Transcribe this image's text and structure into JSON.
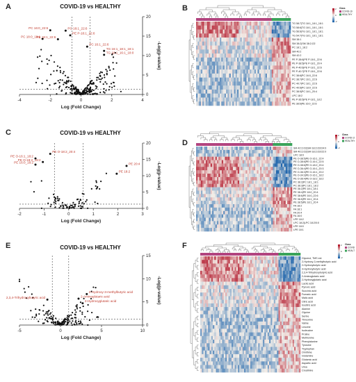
{
  "panels": {
    "A": {
      "letter": "A",
      "title": "COVID-19 vs HEALTHY"
    },
    "B": {
      "letter": "B"
    },
    "C": {
      "letter": "C",
      "title": "COVID-19 vs HEALTHY"
    },
    "D": {
      "letter": "D"
    },
    "E": {
      "letter": "E",
      "title": "COVID-19 vs HEALTHY"
    },
    "F": {
      "letter": "F"
    }
  },
  "legend": {
    "group_label": "Class",
    "covid": "COVID-19",
    "healthy": "HEALTHY"
  },
  "colors": {
    "covid": "#b2447f",
    "healthy": "#3aa35a",
    "heat_high": "#b2182b",
    "heat_mid": "#f4efe9",
    "heat_low": "#2166ac",
    "points": "#111111",
    "annot": "#c0392b",
    "guide": "#444444"
  },
  "chart_data": [
    {
      "panel": "A",
      "type": "scatter",
      "xlabel": "Log (Fold Change)",
      "ylabel": "-Log(p-value)",
      "xlim": [
        -4,
        4
      ],
      "ylim": [
        0,
        20
      ],
      "xticks": [
        -4,
        -2,
        0,
        2,
        4
      ],
      "yticks": [
        0,
        5,
        10,
        15,
        20
      ],
      "annotations": [
        {
          "text": "PC 16:0_22:6",
          "x": -2.0,
          "y": 16.5,
          "side": "left"
        },
        {
          "text": "PC 18:1_22:6",
          "x": -1.0,
          "y": 16.4,
          "side": "right"
        },
        {
          "text": "PE P-18:1_22:6",
          "x": -0.7,
          "y": 15.2,
          "side": "right"
        },
        {
          "text": "PC 18:0_18:1",
          "x": -2.5,
          "y": 14.3,
          "side": "left"
        },
        {
          "text": "PE 16:1_22:6",
          "x": -1.5,
          "y": 14.2,
          "side": "left"
        },
        {
          "text": "TG 16:1_18:1_18:1",
          "x": 1.5,
          "y": 11.2,
          "side": "right"
        },
        {
          "text": "TG 16:1_16:1_18:0",
          "x": 1.5,
          "y": 10.2,
          "side": "right"
        },
        {
          "text": "PC 16:1_22:6",
          "x": 0.4,
          "y": 12.3,
          "side": "right"
        }
      ]
    },
    {
      "panel": "C",
      "type": "scatter",
      "xlabel": "Log (Fold Change)",
      "ylabel": "-Log(p-value)",
      "xlim": [
        -2,
        3
      ],
      "ylim": [
        0,
        20
      ],
      "xticks": [
        -2,
        -1,
        0,
        1,
        2,
        3
      ],
      "yticks": [
        0,
        5,
        10,
        15,
        20
      ],
      "annotations": [
        {
          "text": "PE O-18:2_20:4",
          "x": -0.75,
          "y": 16.7,
          "side": "right"
        },
        {
          "text": "PE O-16:1_18:2",
          "x": -1.35,
          "y": 15.3,
          "side": "left"
        },
        {
          "text": "PE O-18:2_18:2",
          "x": -1.05,
          "y": 14.2,
          "side": "left"
        },
        {
          "text": "PE 16:0_18:2",
          "x": -1.35,
          "y": 13.4,
          "side": "left"
        },
        {
          "text": "PE 20:4",
          "x": 2.35,
          "y": 13.0,
          "side": "right"
        },
        {
          "text": "PE 18:2",
          "x": 1.95,
          "y": 10.6,
          "side": "right"
        }
      ]
    },
    {
      "panel": "E",
      "type": "scatter",
      "xlabel": "Log (Fold Change)",
      "ylabel": "-Log(p-value)",
      "xlim": [
        -5,
        10
      ],
      "ylim": [
        0,
        15
      ],
      "xticks": [
        -5,
        0,
        5,
        10
      ],
      "yticks": [
        0,
        5,
        10,
        15
      ],
      "annotations": [
        {
          "text": "2-Hydroxy-3-methylbutyric acid",
          "x": 3.2,
          "y": 6.7,
          "side": "right"
        },
        {
          "text": "2-Aminoglutaric acid",
          "x": 2.2,
          "y": 5.7,
          "side": "right"
        },
        {
          "text": "2-Hydroxyglutaric acid",
          "x": 2.7,
          "y": 4.7,
          "side": "right"
        },
        {
          "text": "2,3,4-Trihydroxybutyric acid",
          "x": -1.6,
          "y": 5.5,
          "side": "left"
        }
      ]
    },
    {
      "panel": "B",
      "type": "heatmap",
      "row_labels": [
        "TG 58:7|TG 18:1_18:1_18:1",
        "TG 58:6|TG 18:1_18:1_18:1",
        "TG 56:6|TG 18:1_18:1_18:1",
        "TG 54:7|TG 18:1_18:1_18:1",
        "SM 38:1",
        "SM 38:2|SM 38:2;O2",
        "PC 18:1_18:2",
        "SM 40:2",
        "SM 42:2",
        "PE P-38:6|PE P-18:1_22:6",
        "PE P-38:5|PE P-18:1_20:4",
        "PE P-40:6|PE P-18:1_22:6",
        "PE P-40:7|PE P-18:1_22:6",
        "PC 38:6|PC 16:0_22:6",
        "PC 38:7|PC 16:1_22:6",
        "PC 40:7|PC 18:1_22:6",
        "PC 40:6|PC 18:0_22:6",
        "PC 38:5|PC 18:1_20:4",
        "LPC 18:2",
        "PE P-36:5|PE P-18:1_18:2",
        "PE 38:6|PE 16:0_22:6"
      ],
      "n_cols": 60,
      "n_covid": 48,
      "row_groups": [
        0,
        0,
        0,
        0,
        1,
        1,
        1,
        1,
        1,
        2,
        2,
        2,
        2,
        2,
        2,
        2,
        2,
        2,
        2,
        2,
        2
      ],
      "scale": [
        -2,
        0,
        2
      ]
    },
    {
      "panel": "D",
      "type": "heatmap",
      "row_labels": [
        "SM 42:2;O2|SM 18:2;O2/24:0",
        "SM 40:2;O2|SM 18:2;O2/22:0",
        "LPC 18:0",
        "PE O-38:5|PE O-16:1_22:4",
        "PE O-38:6|PE O-16:1_22:5",
        "PE O-38:6|PE O-18:2_20:4",
        "PE O-36:4|PE O-16:1_20:3",
        "PE O-36:3|PE O-16:1_20:2",
        "PE O-34:3|PE O-16:1_18:2",
        "PE O-36:4|PE O-18:2_18:2",
        "PC 36:2|PC 18:1_18:1",
        "PC 36:3|PC 18:1_18:2",
        "PE 36:2|PE 18:1_18:1",
        "PE 38:4|PE 18:0_20:4",
        "PE 38:6|PE 16:0_22:6",
        "PE 36:5|PE 16:1_20:4",
        "PE 38:5|PE 18:1_20:4",
        "FA 18:2",
        "FA 18:1",
        "FA 20:4",
        "FA 16:0",
        "LPE 18:2",
        "LPC 18:2|LPC 18:2/0:0",
        "LPE 18:0",
        "LPE 18:1"
      ],
      "n_cols": 60,
      "n_covid": 48,
      "row_groups": [
        2,
        2,
        2,
        0,
        0,
        0,
        0,
        0,
        0,
        0,
        0,
        0,
        1,
        1,
        1,
        1,
        1,
        2,
        2,
        2,
        2,
        2,
        2,
        2,
        2
      ],
      "scale": [
        -2,
        0,
        2
      ]
    },
    {
      "panel": "F",
      "type": "heatmap",
      "row_labels": [
        "Glycerol, TMS ext",
        "2-Hydroxy-3-methylbutyric acid",
        "2-Hydroxybutyric acid",
        "3-Hydroxybutyric acid",
        "2,3,4-Trihydroxybutyric acid",
        "2-Aminoglutaric acid",
        "2-Hydroxyglutaric acid",
        "Lactic acid",
        "Pyruvic acid",
        "Succinic acid",
        "Fumaric acid",
        "Malic acid",
        "Citric acid",
        "Isocitric acid",
        "Alanine",
        "Glycine",
        "Serine",
        "Threonine",
        "Valine",
        "Leucine",
        "Isoleucine",
        "Proline",
        "Methionine",
        "Phenylalanine",
        "Tyrosine",
        "Tryptophan",
        "Ornithine",
        "Glutamine",
        "Glutamic acid",
        "Aspartic acid",
        "Urea",
        "Creatinine"
      ],
      "n_cols": 64,
      "n_covid": 50,
      "row_groups": [
        0,
        0,
        0,
        0,
        0,
        0,
        0,
        1,
        1,
        1,
        1,
        1,
        1,
        1,
        2,
        2,
        2,
        2,
        2,
        2,
        2,
        2,
        2,
        2,
        2,
        2,
        2,
        2,
        2,
        2,
        2,
        2
      ],
      "scale": [
        -2,
        0,
        2
      ]
    }
  ]
}
